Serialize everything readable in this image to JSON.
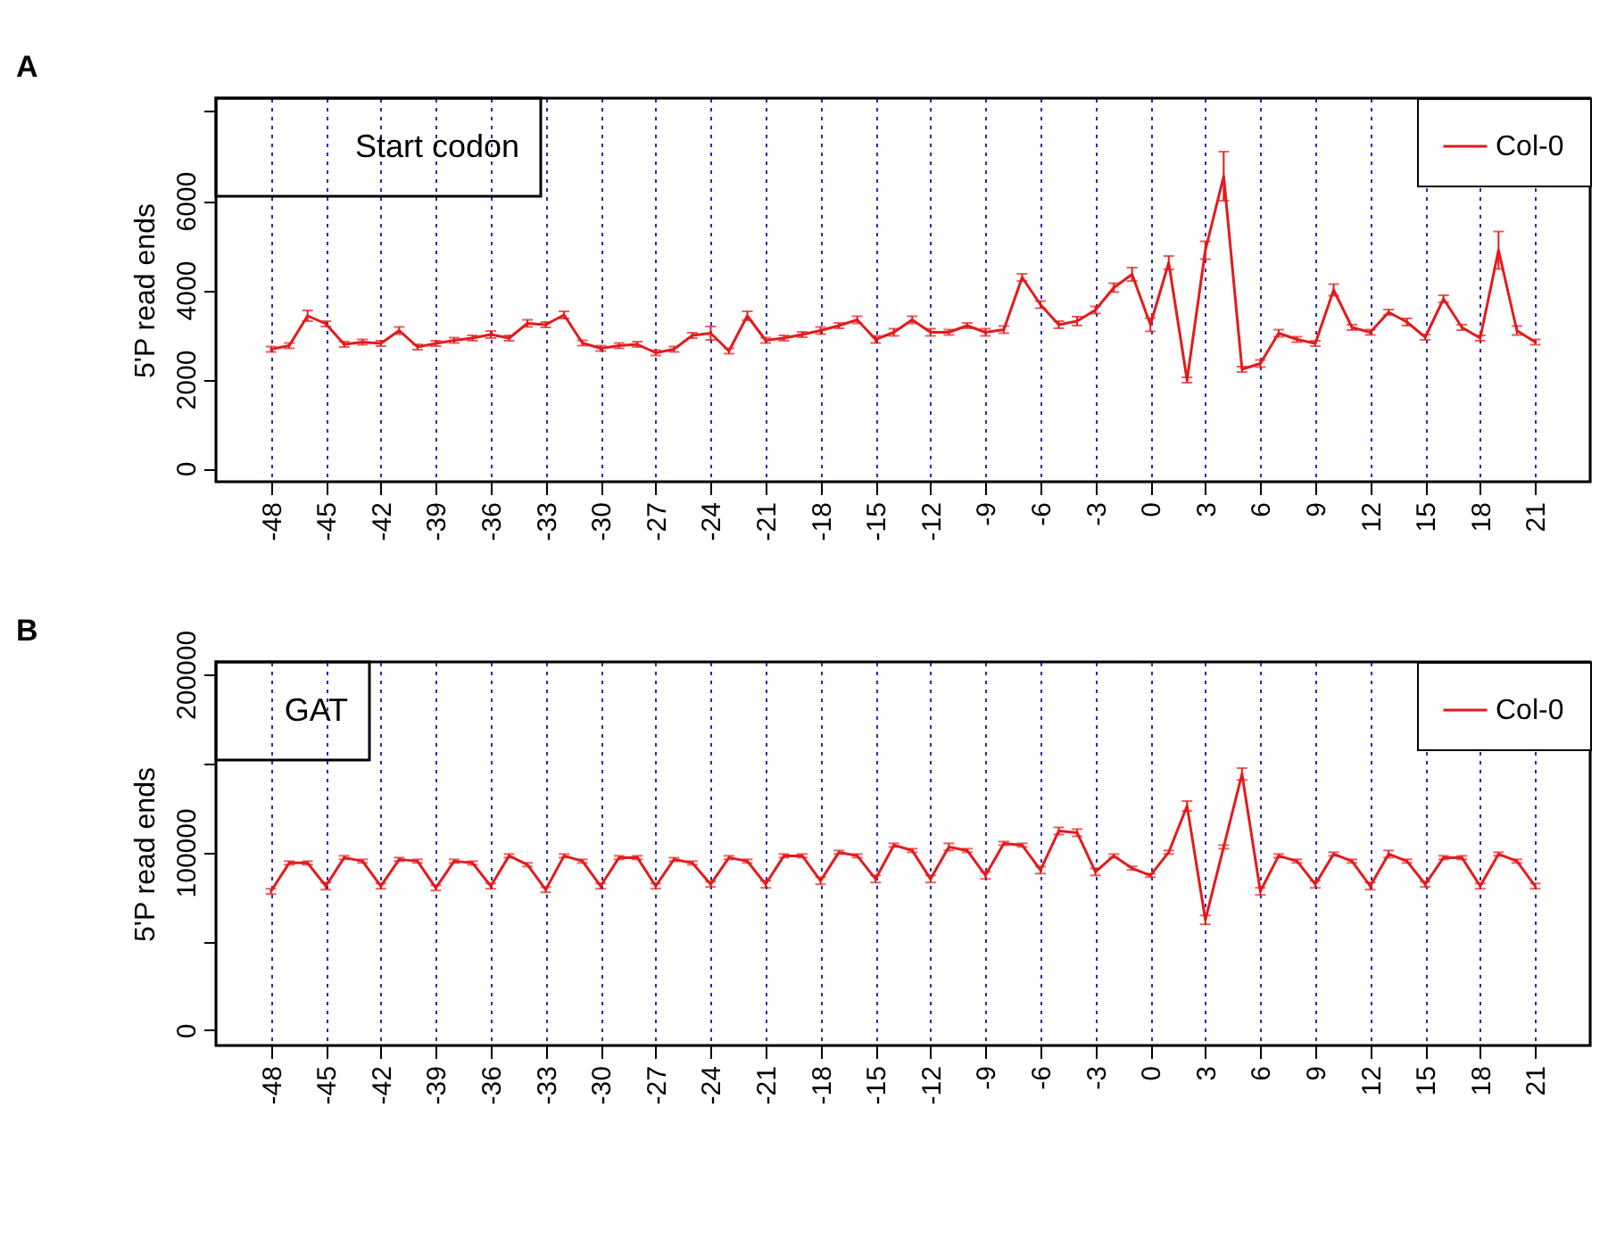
{
  "chart_data": [
    {
      "type": "line",
      "ylabel": "5'P read ends",
      "annotations": [
        "A",
        "Start codon"
      ],
      "legend": "top right",
      "grid": "x",
      "x": [
        -48,
        -47,
        -46,
        -45,
        -44,
        -43,
        -42,
        -41,
        -40,
        -39,
        -38,
        -37,
        -36,
        -35,
        -34,
        -33,
        -32,
        -31,
        -30,
        -29,
        -28,
        -27,
        -26,
        -25,
        -24,
        -23,
        -22,
        -21,
        -20,
        -19,
        -18,
        -17,
        -16,
        -15,
        -14,
        -13,
        -12,
        -11,
        -10,
        -9,
        -8,
        -7,
        -6,
        -5,
        -4,
        -3,
        -2,
        -1,
        0,
        1,
        2,
        3,
        4,
        5,
        6,
        7,
        8,
        9,
        10,
        11,
        12,
        13,
        14,
        15,
        16,
        17,
        18,
        19,
        20,
        21
      ],
      "xlim": [
        -51,
        24
      ],
      "xticks": [
        -48,
        -45,
        -42,
        -39,
        -36,
        -33,
        -30,
        -27,
        -24,
        -21,
        -18,
        -15,
        -12,
        -9,
        -6,
        -3,
        0,
        3,
        6,
        9,
        12,
        15,
        18,
        21
      ],
      "ylim": [
        -300,
        8300
      ],
      "yticks": [
        0,
        2000,
        4000,
        6000,
        {
          "value": 8000,
          "label": null
        }
      ],
      "series": [
        {
          "name": "Col-0",
          "color": "#e41a1c",
          "values": [
            2670,
            2750,
            3420,
            3240,
            2780,
            2830,
            2800,
            3090,
            2720,
            2800,
            2870,
            2920,
            3000,
            2920,
            3250,
            3220,
            3440,
            2810,
            2690,
            2750,
            2780,
            2590,
            2670,
            2980,
            3030,
            2630,
            3420,
            2870,
            2920,
            3000,
            3090,
            3200,
            3330,
            2890,
            3050,
            3330,
            3050,
            3050,
            3200,
            3050,
            3110,
            4280,
            3670,
            3220,
            3300,
            3550,
            4050,
            4350,
            3220,
            4610,
            1980,
            4890,
            6550,
            2220,
            2350,
            3030,
            2890,
            2800,
            4000,
            3160,
            3050,
            3500,
            3280,
            2940,
            3800,
            3160,
            2920,
            4890,
            3090,
            2830
          ],
          "errors": [
            60,
            60,
            120,
            60,
            60,
            60,
            60,
            80,
            60,
            60,
            60,
            60,
            80,
            60,
            80,
            60,
            80,
            60,
            60,
            60,
            60,
            60,
            60,
            60,
            150,
            60,
            100,
            60,
            60,
            60,
            80,
            60,
            80,
            80,
            80,
            80,
            80,
            60,
            60,
            80,
            80,
            80,
            80,
            80,
            100,
            80,
            100,
            150,
            150,
            150,
            60,
            200,
            550,
            60,
            80,
            80,
            60,
            60,
            130,
            60,
            60,
            60,
            80,
            60,
            80,
            60,
            60,
            420,
            100,
            60
          ]
        }
      ]
    },
    {
      "type": "line",
      "ylabel": "5'P read ends",
      "annotations": [
        "B",
        "GAT"
      ],
      "legend": "top right",
      "grid": "x",
      "x": [
        -48,
        -47,
        -46,
        -45,
        -44,
        -43,
        -42,
        -41,
        -40,
        -39,
        -38,
        -37,
        -36,
        -35,
        -34,
        -33,
        -32,
        -31,
        -30,
        -29,
        -28,
        -27,
        -26,
        -25,
        -24,
        -23,
        -22,
        -21,
        -20,
        -19,
        -18,
        -17,
        -16,
        -15,
        -14,
        -13,
        -12,
        -11,
        -10,
        -9,
        -8,
        -7,
        -6,
        -5,
        -4,
        -3,
        -2,
        -1,
        0,
        1,
        2,
        3,
        4,
        5,
        6,
        7,
        8,
        9,
        10,
        11,
        12,
        13,
        14,
        15,
        16,
        17,
        18,
        19,
        20,
        21
      ],
      "xlim": [
        -51,
        24
      ],
      "xticks": [
        -48,
        -45,
        -42,
        -39,
        -36,
        -33,
        -30,
        -27,
        -24,
        -21,
        -18,
        -15,
        -12,
        -9,
        -6,
        -3,
        0,
        3,
        6,
        9,
        12,
        15,
        18,
        21
      ],
      "ylim": [
        -8600,
        207000
      ],
      "yticks": [
        0,
        {
          "value": 50000,
          "label": null
        },
        100000,
        {
          "value": 150000,
          "label": null
        },
        200000
      ],
      "series": [
        {
          "name": "Col-0",
          "color": "#e41a1c",
          "values": [
            78000,
            94000,
            94000,
            81000,
            97000,
            95000,
            81000,
            96000,
            95000,
            80000,
            95000,
            94000,
            81000,
            98000,
            93000,
            79000,
            98000,
            95000,
            81000,
            97000,
            97000,
            81000,
            96000,
            94000,
            82000,
            97000,
            95000,
            82000,
            98000,
            98000,
            84000,
            100000,
            98000,
            85000,
            104000,
            101000,
            85000,
            103000,
            101000,
            87000,
            105000,
            104000,
            90000,
            112000,
            111000,
            89000,
            98000,
            91000,
            87000,
            100000,
            126000,
            62000,
            103000,
            144000,
            78000,
            98000,
            95000,
            82000,
            99000,
            95000,
            81000,
            99000,
            95000,
            82000,
            97000,
            97000,
            81000,
            99000,
            95000,
            81000
          ],
          "errors": [
            1500,
            1000,
            1000,
            2000,
            1000,
            1000,
            1500,
            1000,
            1000,
            1500,
            1000,
            1000,
            1500,
            1000,
            1000,
            1500,
            1000,
            1000,
            1500,
            1000,
            1000,
            1500,
            1000,
            1000,
            1500,
            1000,
            1000,
            2000,
            1000,
            1000,
            2000,
            1000,
            1000,
            2000,
            1000,
            1000,
            2000,
            2000,
            1000,
            2000,
            1000,
            1000,
            2000,
            2000,
            2000,
            2000,
            1000,
            1000,
            1000,
            1000,
            2800,
            2500,
            1000,
            3300,
            2000,
            1000,
            1000,
            2000,
            1000,
            1000,
            2000,
            2000,
            1000,
            1500,
            1000,
            1000,
            1500,
            1000,
            1000,
            1500
          ]
        }
      ]
    }
  ]
}
